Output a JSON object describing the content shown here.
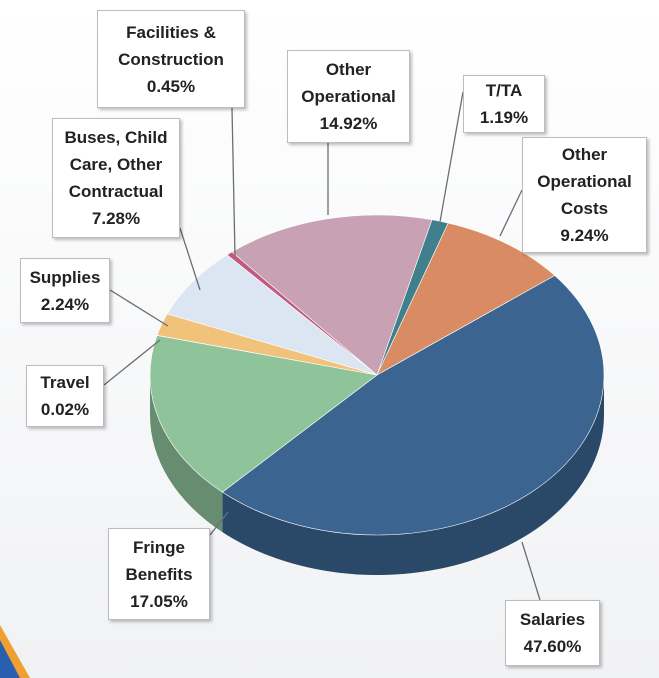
{
  "chart_data": {
    "type": "pie",
    "categories": [
      "T/TA",
      "Other Operational Costs",
      "Salaries",
      "Fringe Benefits",
      "Travel",
      "Supplies",
      "Buses, Child Care, Other Contractual",
      "Facilities & Construction",
      "Other Operational"
    ],
    "values": [
      1.19,
      9.24,
      47.6,
      17.05,
      0.02,
      2.24,
      7.28,
      0.45,
      14.92
    ],
    "value_labels": [
      "1.19%",
      "9.24%",
      "47.60%",
      "17.05%",
      "0.02%",
      "2.24%",
      "7.28%",
      "0.45%",
      "14.92%"
    ],
    "colors": [
      "#3f808c",
      "#d98b64",
      "#3b6590",
      "#8fc49b",
      "#9fc8a8",
      "#f0c27a",
      "#dce6f2",
      "#c05a80",
      "#c8a1b4"
    ]
  }
}
